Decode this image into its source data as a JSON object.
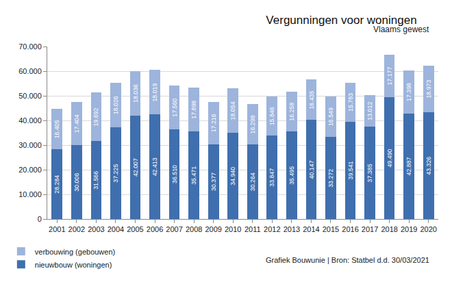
{
  "chart_data": {
    "type": "bar",
    "title": "Vergunningen voor woningen",
    "subtitle": "Vlaams gewest",
    "categories": [
      "2001",
      "2002",
      "2003",
      "2004",
      "2005",
      "2006",
      "2007",
      "2008",
      "2009",
      "2010",
      "2011",
      "2012",
      "2013",
      "2014",
      "2015",
      "2016",
      "2017",
      "2018",
      "2019",
      "2020"
    ],
    "series": [
      {
        "name": "nieuwbouw (woningen)",
        "color": "#3f6fae",
        "values": [
          28284,
          30006,
          31566,
          37225,
          42007,
          42413,
          36510,
          35471,
          30377,
          34940,
          30264,
          33847,
          35495,
          40147,
          33272,
          39541,
          37385,
          49490,
          42887,
          43326
        ],
        "value_labels": [
          "28.284",
          "30.006",
          "31.566",
          "37.225",
          "42.007",
          "42.413",
          "36.510",
          "35.471",
          "30.377",
          "34.940",
          "30.264",
          "33.847",
          "35.495",
          "40.147",
          "33.272",
          "39.541",
          "37.385",
          "49.490",
          "42.887",
          "43.326"
        ]
      },
      {
        "name": "verbouwing (gebouwen)",
        "color": "#9db4dc",
        "values": [
          16405,
          17404,
          19692,
          18026,
          18036,
          18019,
          17560,
          17898,
          17216,
          18054,
          16298,
          15846,
          16258,
          16435,
          16549,
          15783,
          13012,
          17177,
          17398,
          18973
        ],
        "value_labels": [
          "16.405",
          "17.404",
          "19.692",
          "18.026",
          "18.036",
          "18.019",
          "17.560",
          "17.898",
          "17.216",
          "18.054",
          "16.298",
          "15.846",
          "16.258",
          "16.435",
          "16.549",
          "15.783",
          "13.012",
          "17.177",
          "17.398",
          "18.973"
        ]
      }
    ],
    "ylim": [
      0,
      70000
    ],
    "yticks": [
      0,
      {
        "value": 10000,
        "label": "10.000"
      },
      {
        "value": 20000,
        "label": "20.000"
      },
      {
        "value": 30000,
        "label": "30.000"
      },
      {
        "value": 40000,
        "label": "40.000"
      },
      {
        "value": 50000,
        "label": "50.000"
      },
      {
        "value": 60000,
        "label": "60.000"
      },
      {
        "value": 70000,
        "label": "70.000"
      }
    ],
    "grid": true,
    "stacked": true,
    "data_labels": true,
    "legend": "bottom-left",
    "annotations": [
      {
        "text": "Grafiek Bouwunie | Bron: Statbel d.d. 30/03/2021"
      }
    ]
  }
}
